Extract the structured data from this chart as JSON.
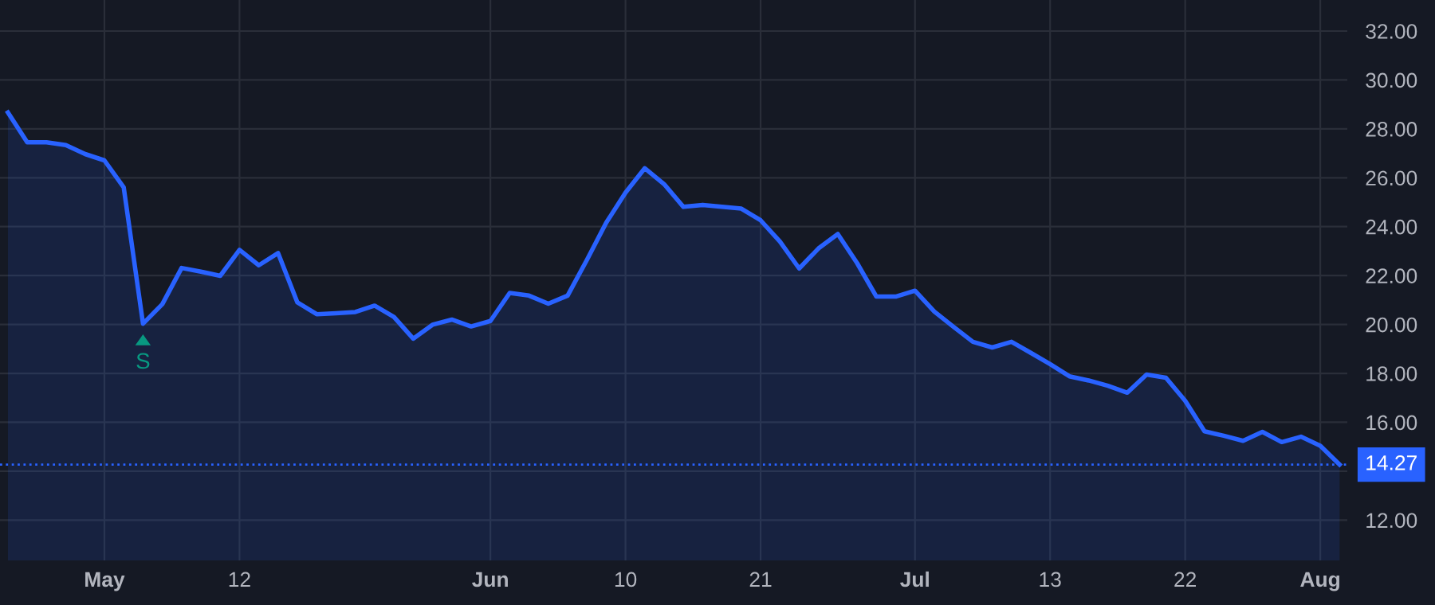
{
  "chart_data": {
    "type": "area",
    "categories": [
      null,
      null,
      null,
      null,
      null,
      "May",
      null,
      null,
      null,
      null,
      null,
      null,
      "12",
      null,
      null,
      null,
      null,
      null,
      null,
      null,
      null,
      null,
      null,
      null,
      null,
      "Jun",
      null,
      null,
      null,
      null,
      null,
      null,
      "10",
      null,
      null,
      null,
      null,
      null,
      null,
      "21",
      null,
      null,
      null,
      null,
      null,
      null,
      null,
      "Jul",
      null,
      null,
      null,
      null,
      null,
      null,
      "13",
      null,
      null,
      null,
      null,
      null,
      null,
      "22",
      null,
      null,
      null,
      null,
      null,
      null,
      "Aug",
      null
    ],
    "series": [
      {
        "color": "#2962ff",
        "values": [
          28.67,
          27.45,
          27.45,
          27.34,
          26.97,
          26.71,
          25.61,
          20.03,
          20.83,
          22.31,
          22.16,
          21.99,
          23.05,
          22.42,
          22.92,
          20.9,
          20.42,
          20.46,
          20.51,
          20.77,
          20.31,
          19.42,
          19.99,
          20.2,
          19.92,
          20.14,
          21.29,
          21.18,
          20.85,
          21.18,
          22.64,
          24.16,
          25.39,
          26.39,
          25.74,
          24.81,
          24.89,
          24.81,
          24.74,
          24.26,
          23.39,
          22.29,
          23.11,
          23.7,
          22.51,
          21.14,
          21.14,
          21.38,
          20.53,
          19.9,
          19.29,
          19.06,
          19.29,
          18.84,
          18.38,
          17.88,
          17.71,
          17.49,
          17.21,
          17.95,
          17.82,
          16.88,
          15.63,
          15.45,
          15.24,
          15.61,
          15.19,
          15.41,
          15.04,
          14.27
        ]
      }
    ],
    "ylim": [
      10.35,
      33.27
    ],
    "yticks": [
      {
        "value": 12,
        "label": "12.00"
      },
      {
        "value": 14,
        "label": null
      },
      {
        "value": 16,
        "label": "16.00"
      },
      {
        "value": 18,
        "label": "18.00"
      },
      {
        "value": 20,
        "label": "20.00"
      },
      {
        "value": 22,
        "label": "22.00"
      },
      {
        "value": 24,
        "label": "24.00"
      },
      {
        "value": 26,
        "label": "26.00"
      },
      {
        "value": 28,
        "label": "28.00"
      },
      {
        "value": 30,
        "label": "30.00"
      },
      {
        "value": 32,
        "label": "32.00"
      }
    ],
    "ref_lines": [
      {
        "axis": "y",
        "value": 14.27,
        "label": "14.27",
        "color": "#2962ff",
        "line_style": "dotted"
      }
    ],
    "annotations": [
      {
        "text": "S",
        "y": 20.03
      }
    ],
    "grid": true,
    "legend": false
  }
}
